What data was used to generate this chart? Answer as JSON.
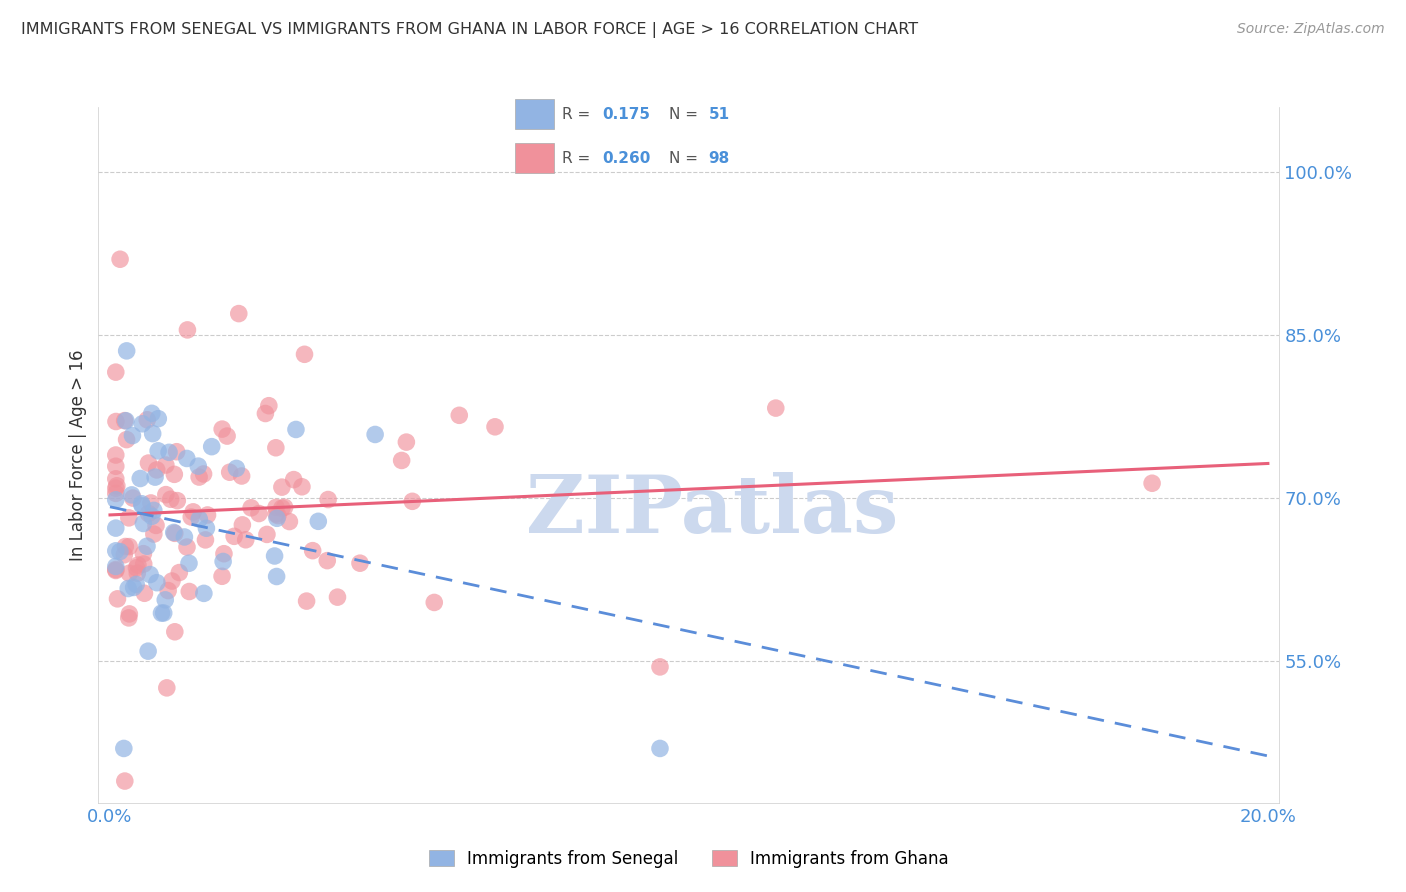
{
  "title": "IMMIGRANTS FROM SENEGAL VS IMMIGRANTS FROM GHANA IN LABOR FORCE | AGE > 16 CORRELATION CHART",
  "source": "Source: ZipAtlas.com",
  "ylabel": "In Labor Force | Age > 16",
  "xmin": -0.002,
  "xmax": 0.202,
  "ymin": 0.42,
  "ymax": 1.06,
  "yticks": [
    0.55,
    0.7,
    0.85,
    1.0
  ],
  "ytick_labels": [
    "55.0%",
    "70.0%",
    "85.0%",
    "100.0%"
  ],
  "xticks": [
    0.0,
    0.05,
    0.1,
    0.15,
    0.2
  ],
  "xtick_labels": [
    "0.0%",
    "",
    "",
    "",
    "20.0%"
  ],
  "color_senegal": "#92b4e3",
  "color_ghana": "#f0919b",
  "color_trend_senegal": "#5b8dd9",
  "color_trend_ghana": "#e8607a",
  "color_axis": "#4a90d9",
  "watermark": "ZIPatlas",
  "watermark_color": "#ccd9ee",
  "bg_color": "white",
  "grid_color": "#cccccc",
  "title_color": "#333333",
  "source_color": "#999999"
}
